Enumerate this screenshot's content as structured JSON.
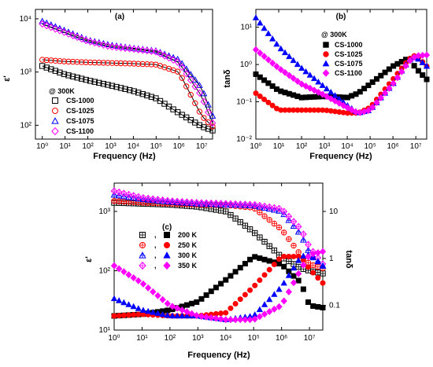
{
  "chart_data": [
    {
      "panel": "(a)",
      "type": "scatter",
      "xlabel": "Frequency (Hz)",
      "ylabel": "ε'",
      "xscale": "log",
      "yscale": "log",
      "xlim": [
        0.5,
        30000000
      ],
      "ylim": [
        55,
        15000
      ],
      "xticks": [
        {
          "v": 1,
          "label": "10⁰"
        },
        {
          "v": 10,
          "label": "10¹"
        },
        {
          "v": 100,
          "label": "10²"
        },
        {
          "v": 1000,
          "label": "10³"
        },
        {
          "v": 10000,
          "label": "10⁴"
        },
        {
          "v": 100000,
          "label": "10⁵"
        },
        {
          "v": 1000000,
          "label": "10⁶"
        },
        {
          "v": 10000000,
          "label": "10⁷"
        }
      ],
      "yticks": [
        {
          "v": 100,
          "label": "10²"
        },
        {
          "v": 1000,
          "label": "10³"
        },
        {
          "v": 10000,
          "label": "10⁴"
        }
      ],
      "legend_title": "@ 300K",
      "legend_position": "bottom-left",
      "fit_lines": true,
      "x": [
        1,
        10,
        100,
        1000,
        10000,
        100000,
        1000000,
        10000000,
        30000000
      ],
      "series": [
        {
          "name": "CS-1000",
          "marker": "open-square",
          "color": "#000000",
          "values": [
            1300,
            900,
            700,
            560,
            440,
            320,
            170,
            95,
            80
          ]
        },
        {
          "name": "CS-1025",
          "marker": "open-circle",
          "color": "#ff0000",
          "values": [
            1700,
            1580,
            1520,
            1480,
            1440,
            1380,
            1000,
            150,
            95
          ]
        },
        {
          "name": "CS-1075",
          "marker": "open-triangle",
          "color": "#0000ff",
          "values": [
            9000,
            6000,
            4000,
            3200,
            2800,
            2500,
            1700,
            500,
            150
          ]
        },
        {
          "name": "CS-1100",
          "marker": "open-diamond",
          "color": "#ff00ff",
          "values": [
            8000,
            5500,
            3800,
            3000,
            2700,
            2400,
            1500,
            350,
            110
          ]
        }
      ]
    },
    {
      "panel": "(b)",
      "type": "scatter",
      "xlabel": "Frequency (Hz)",
      "ylabel": "tanδ",
      "xscale": "log",
      "yscale": "log",
      "xlim": [
        1,
        30000000
      ],
      "ylim": [
        0.01,
        30
      ],
      "xticks": [
        {
          "v": 1,
          "label": "10⁰"
        },
        {
          "v": 10,
          "label": "10¹"
        },
        {
          "v": 100,
          "label": "10²"
        },
        {
          "v": 1000,
          "label": "10³"
        },
        {
          "v": 10000,
          "label": "10⁴"
        },
        {
          "v": 100000,
          "label": "10⁵"
        },
        {
          "v": 1000000,
          "label": "10⁶"
        },
        {
          "v": 10000000,
          "label": "10⁷"
        }
      ],
      "yticks": [
        {
          "v": 0.01,
          "label": "10⁻²"
        },
        {
          "v": 0.1,
          "label": "10⁻¹"
        },
        {
          "v": 1,
          "label": "10⁰"
        },
        {
          "v": 10,
          "label": "10¹"
        }
      ],
      "legend_title": "@ 300K",
      "legend_position": "top-left",
      "x": [
        1,
        10,
        100,
        1000,
        10000,
        30000,
        100000,
        1000000,
        5000000,
        10000000,
        30000000
      ],
      "series": [
        {
          "name": "CS-1000",
          "marker": "filled-square",
          "color": "#000000",
          "values": [
            0.55,
            0.2,
            0.13,
            0.14,
            0.13,
            0.17,
            0.3,
            0.9,
            1.5,
            0.8,
            0.4
          ]
        },
        {
          "name": "CS-1025",
          "marker": "filled-circle",
          "color": "#ff0000",
          "values": [
            0.17,
            0.06,
            0.06,
            0.06,
            0.05,
            0.05,
            0.07,
            0.4,
            1.4,
            1.8,
            0.9
          ]
        },
        {
          "name": "CS-1075",
          "marker": "filled-triangle",
          "color": "#0000ff",
          "values": [
            18,
            3,
            0.8,
            0.25,
            0.08,
            0.05,
            0.06,
            0.3,
            1.3,
            1.6,
            0.9
          ]
        },
        {
          "name": "CS-1100",
          "marker": "filled-diamond",
          "color": "#ff00ff",
          "values": [
            2.5,
            0.8,
            0.3,
            0.15,
            0.07,
            0.05,
            0.06,
            0.3,
            1.2,
            1.7,
            1.8
          ]
        }
      ]
    },
    {
      "panel": "(c)",
      "type": "scatter",
      "xlabel": "Frequency (Hz)",
      "ylabel": "ε'",
      "y2label": "tanδ",
      "xscale": "log",
      "yscale": "log",
      "y2scale": "log",
      "xlim": [
        1,
        30000000
      ],
      "ylim": [
        10,
        3000
      ],
      "y2lim": [
        0.03,
        40
      ],
      "xticks": [
        {
          "v": 1,
          "label": "10⁰"
        },
        {
          "v": 10,
          "label": "10¹"
        },
        {
          "v": 100,
          "label": "10²"
        },
        {
          "v": 1000,
          "label": "10³"
        },
        {
          "v": 10000,
          "label": "10⁴"
        },
        {
          "v": 100000,
          "label": "10⁵"
        },
        {
          "v": 1000000,
          "label": "10⁶"
        },
        {
          "v": 10000000,
          "label": "10⁷"
        }
      ],
      "yticks": [
        {
          "v": 10,
          "label": "10¹"
        },
        {
          "v": 100,
          "label": "10²"
        },
        {
          "v": 1000,
          "label": "10³"
        }
      ],
      "y2ticks": [
        {
          "v": 0.1,
          "label": "0.1"
        },
        {
          "v": 1,
          "label": "1"
        },
        {
          "v": 10,
          "label": "10"
        }
      ],
      "legend_position": "center-left",
      "x": [
        1,
        10,
        100,
        1000,
        10000,
        100000,
        1000000,
        5000000,
        10000000,
        30000000
      ],
      "series_eps": [
        {
          "name": "200 K",
          "marker": "open-square-plus",
          "color": "#000000",
          "values": [
            1400,
            1350,
            1300,
            1200,
            1000,
            450,
            170,
            110,
            100,
            90
          ]
        },
        {
          "name": "250 K",
          "marker": "open-circle-plus",
          "color": "#ff0000",
          "values": [
            1500,
            1400,
            1350,
            1300,
            1280,
            1150,
            500,
            180,
            130,
            110
          ]
        },
        {
          "name": "300 K",
          "marker": "open-triangle-plus",
          "color": "#0000ff",
          "values": [
            1900,
            1600,
            1450,
            1350,
            1300,
            1250,
            1000,
            400,
            200,
            120
          ]
        },
        {
          "name": "350 K",
          "marker": "open-diamond-plus",
          "color": "#ff00ff",
          "values": [
            2200,
            1700,
            1500,
            1400,
            1350,
            1300,
            1100,
            500,
            250,
            130
          ]
        }
      ],
      "series_tan": [
        {
          "name": "200 K",
          "marker": "filled-square",
          "color": "#000000",
          "values": [
            0.06,
            0.065,
            0.08,
            0.12,
            0.35,
            1.1,
            0.75,
            0.3,
            0.1,
            0.09
          ]
        },
        {
          "name": "250 K",
          "marker": "filled-circle",
          "color": "#ff0000",
          "values": [
            0.06,
            0.065,
            0.06,
            0.06,
            0.07,
            0.25,
            1.1,
            1.1,
            0.6,
            0.3
          ]
        },
        {
          "name": "300 K",
          "marker": "filled-triangle",
          "color": "#0000ff",
          "values": [
            0.14,
            0.08,
            0.06,
            0.06,
            0.05,
            0.06,
            0.25,
            1.1,
            1.2,
            0.7
          ]
        },
        {
          "name": "350 K",
          "marker": "filled-diamond",
          "color": "#ff00ff",
          "values": [
            0.7,
            0.3,
            0.1,
            0.06,
            0.05,
            0.05,
            0.1,
            0.6,
            1.2,
            1.4
          ]
        }
      ]
    }
  ]
}
